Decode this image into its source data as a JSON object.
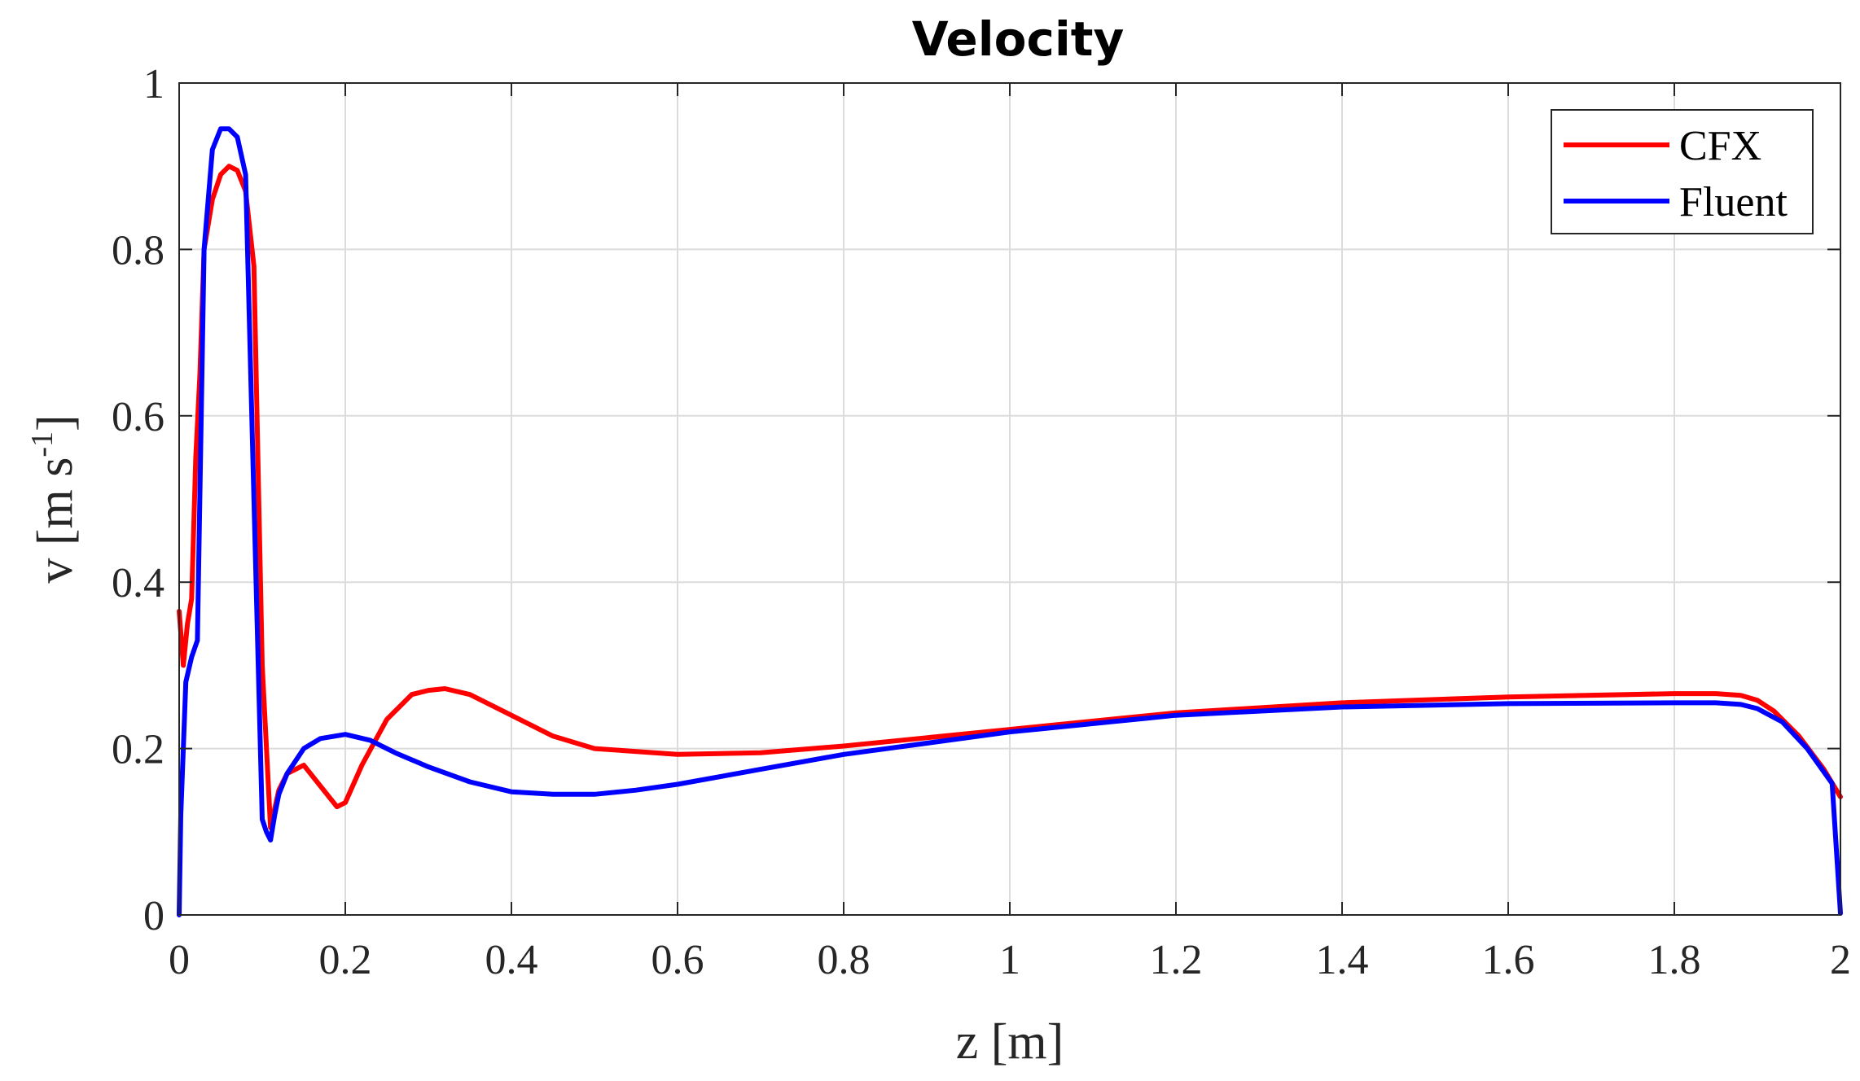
{
  "chart_data": {
    "type": "line",
    "title": "Velocity",
    "xlabel": "z [m]",
    "ylabel": "v [m s",
    "ylabel_superscript": "-1",
    "ylabel_close": "]",
    "xlim": [
      0,
      2
    ],
    "ylim": [
      0,
      1
    ],
    "xticks": [
      "0",
      "0.2",
      "0.4",
      "0.6",
      "0.8",
      "1",
      "1.2",
      "1.4",
      "1.6",
      "1.8",
      "2"
    ],
    "yticks": [
      "0",
      "0.2",
      "0.4",
      "0.6",
      "0.8",
      "1"
    ],
    "grid": true,
    "legend_position": "top-right",
    "series": [
      {
        "name": "CFX",
        "color": "#ff0000",
        "x": [
          0,
          0.005,
          0.01,
          0.015,
          0.02,
          0.025,
          0.03,
          0.04,
          0.05,
          0.06,
          0.07,
          0.08,
          0.09,
          0.1,
          0.11,
          0.12,
          0.13,
          0.15,
          0.17,
          0.19,
          0.2,
          0.22,
          0.25,
          0.28,
          0.3,
          0.32,
          0.35,
          0.4,
          0.45,
          0.5,
          0.6,
          0.7,
          0.8,
          0.9,
          1.0,
          1.2,
          1.4,
          1.6,
          1.8,
          1.85,
          1.88,
          1.9,
          1.92,
          1.95,
          1.98,
          2.0
        ],
        "y": [
          0.365,
          0.3,
          0.35,
          0.38,
          0.55,
          0.65,
          0.8,
          0.86,
          0.89,
          0.9,
          0.895,
          0.87,
          0.78,
          0.3,
          0.105,
          0.15,
          0.17,
          0.18,
          0.155,
          0.13,
          0.135,
          0.18,
          0.235,
          0.265,
          0.27,
          0.272,
          0.265,
          0.24,
          0.215,
          0.2,
          0.193,
          0.195,
          0.203,
          0.213,
          0.223,
          0.243,
          0.255,
          0.262,
          0.266,
          0.266,
          0.264,
          0.258,
          0.245,
          0.215,
          0.175,
          0.142
        ]
      },
      {
        "name": "Fluent",
        "color": "#0000ff",
        "x": [
          0,
          0.002,
          0.008,
          0.015,
          0.022,
          0.03,
          0.04,
          0.05,
          0.06,
          0.07,
          0.08,
          0.09,
          0.1,
          0.105,
          0.11,
          0.115,
          0.12,
          0.13,
          0.15,
          0.17,
          0.2,
          0.23,
          0.26,
          0.3,
          0.35,
          0.4,
          0.45,
          0.5,
          0.55,
          0.6,
          0.7,
          0.8,
          1.0,
          1.2,
          1.4,
          1.6,
          1.8,
          1.85,
          1.88,
          1.9,
          1.93,
          1.96,
          1.99,
          1.995,
          2.0
        ],
        "y": [
          0,
          0.12,
          0.28,
          0.31,
          0.33,
          0.8,
          0.92,
          0.945,
          0.945,
          0.935,
          0.89,
          0.5,
          0.115,
          0.1,
          0.09,
          0.12,
          0.145,
          0.17,
          0.2,
          0.212,
          0.217,
          0.21,
          0.195,
          0.178,
          0.16,
          0.148,
          0.145,
          0.145,
          0.15,
          0.157,
          0.175,
          0.193,
          0.22,
          0.24,
          0.25,
          0.254,
          0.255,
          0.255,
          0.253,
          0.248,
          0.232,
          0.2,
          0.158,
          0.08,
          0.002
        ]
      }
    ]
  }
}
